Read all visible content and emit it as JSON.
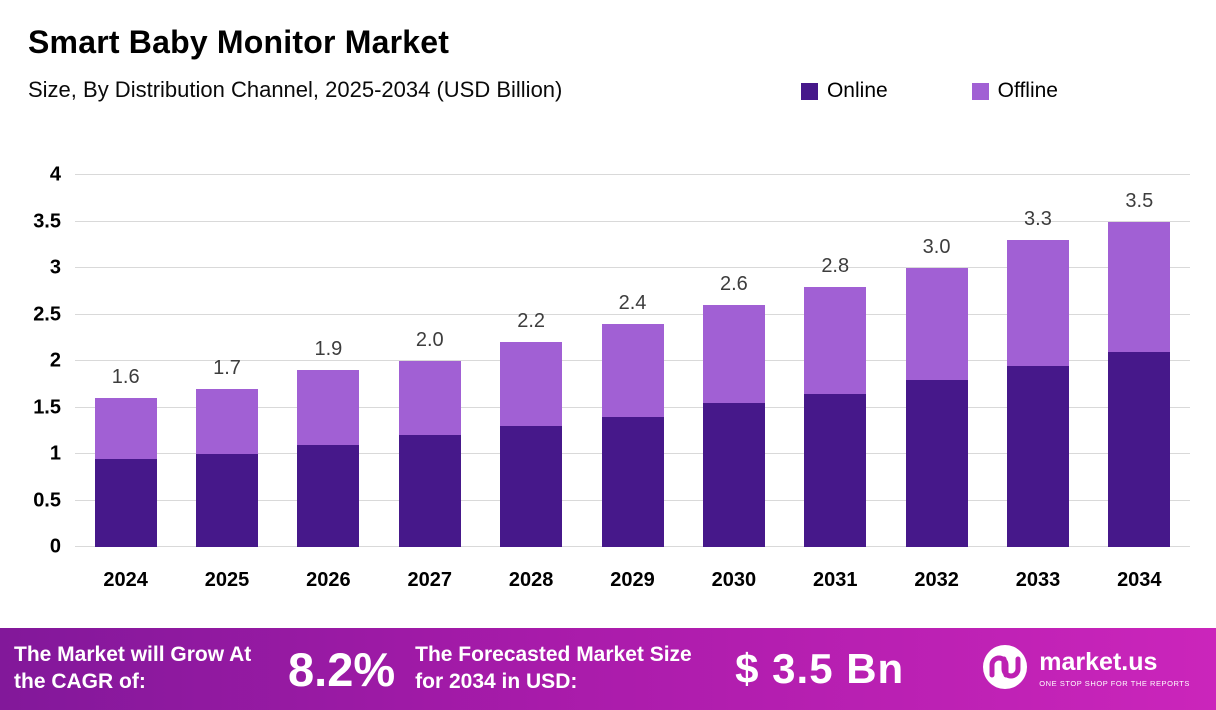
{
  "header": {
    "title": "Smart Baby Monitor Market",
    "subtitle": "Size, By Distribution Channel, 2025-2034 (USD Billion)"
  },
  "legend": [
    {
      "label": "Online",
      "color": "#46188a"
    },
    {
      "label": "Offline",
      "color": "#a160d4"
    }
  ],
  "chart_data": {
    "type": "bar",
    "stacked": true,
    "title": "Smart Baby Monitor Market",
    "subtitle": "Size, By Distribution Channel, 2025-2034 (USD Billion)",
    "categories": [
      "2024",
      "2025",
      "2026",
      "2027",
      "2028",
      "2029",
      "2030",
      "2031",
      "2032",
      "2033",
      "2034"
    ],
    "series": [
      {
        "name": "Online",
        "color": "#46188a",
        "values": [
          0.95,
          1.0,
          1.1,
          1.2,
          1.3,
          1.4,
          1.55,
          1.65,
          1.8,
          1.95,
          2.1
        ]
      },
      {
        "name": "Offline",
        "color": "#a160d4",
        "values": [
          0.65,
          0.7,
          0.8,
          0.8,
          0.9,
          1.0,
          1.05,
          1.15,
          1.2,
          1.35,
          1.4
        ]
      }
    ],
    "totals_labels": [
      "1.6",
      "1.7",
      "1.9",
      "2.0",
      "2.2",
      "2.4",
      "2.6",
      "2.8",
      "3.0",
      "3.3",
      "3.5"
    ],
    "ylim": [
      0,
      4
    ],
    "yticks": [
      0,
      0.5,
      1,
      1.5,
      2,
      2.5,
      3,
      3.5,
      4
    ],
    "grid": true,
    "legend_position": "top-right",
    "xlabel": "",
    "ylabel": ""
  },
  "footer": {
    "cagr_label": "The Market will Grow At the CAGR of:",
    "cagr_value": "8.2%",
    "forecast_label": "The Forecasted Market Size for 2034 in USD:",
    "forecast_value": "$ 3.5 Bn",
    "brand": "market.us",
    "brand_tagline": "ONE STOP SHOP FOR THE REPORTS"
  }
}
